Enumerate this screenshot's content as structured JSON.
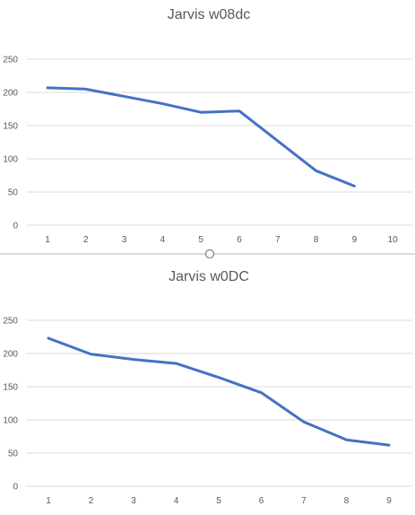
{
  "chart_data": [
    {
      "type": "line",
      "title": "Jarvis w08dc",
      "categories": [
        "1",
        "2",
        "3",
        "4",
        "5",
        "6",
        "7",
        "8",
        "9",
        "10"
      ],
      "series": [
        {
          "values": [
            207,
            205,
            194,
            183,
            170,
            172,
            null,
            82,
            59,
            null
          ]
        }
      ],
      "ylim": [
        0,
        250
      ],
      "yticks": [
        "0",
        "50",
        "100",
        "150",
        "200",
        "250"
      ],
      "grid": true,
      "color": "#4472c4"
    },
    {
      "type": "line",
      "title": "Jarvis w0DC",
      "categories": [
        "1",
        "2",
        "3",
        "4",
        "5",
        "6",
        "7",
        "8",
        "9"
      ],
      "series": [
        {
          "values": [
            223,
            199,
            191,
            185,
            164,
            141,
            97,
            70,
            62
          ]
        }
      ],
      "ylim": [
        0,
        250
      ],
      "yticks": [
        "0",
        "50",
        "100",
        "150",
        "200",
        "250"
      ],
      "grid": true,
      "color": "#4472c4"
    }
  ]
}
